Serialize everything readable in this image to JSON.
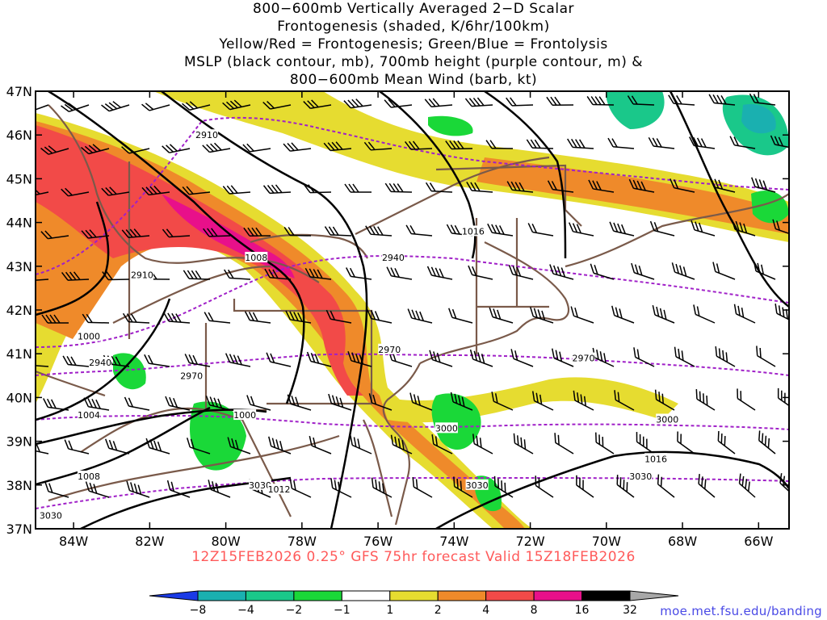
{
  "title": {
    "lines": [
      "800−600mb Vertically Averaged 2−D Scalar",
      "Frontogenesis (shaded, K/6hr/100km)",
      "Yellow/Red = Frontogenesis;  Green/Blue = Frontolysis",
      "MSLP (black contour, mb), 700mb height (purple contour, m) &",
      "800−600mb Mean Wind (barb, kt)"
    ]
  },
  "subtitle": "12Z15FEB2026 0.25° GFS 75hr forecast Valid 15Z18FEB2026",
  "credit": "moe.met.fsu.edu/banding",
  "map": {
    "lon_range": [
      -85,
      -65.2
    ],
    "lat_range": [
      37,
      47
    ],
    "lat_ticks": [
      "37N",
      "38N",
      "39N",
      "40N",
      "41N",
      "42N",
      "43N",
      "44N",
      "45N",
      "46N",
      "47N"
    ],
    "lon_ticks": [
      "84W",
      "82W",
      "80W",
      "78W",
      "76W",
      "74W",
      "72W",
      "70W",
      "68W",
      "66W"
    ],
    "height_contour_labels": [
      {
        "text": "2910",
        "lon": -80.5,
        "lat": 46.0
      },
      {
        "text": "2910",
        "lon": -82.2,
        "lat": 42.8
      },
      {
        "text": "2940",
        "lon": -75.6,
        "lat": 43.2
      },
      {
        "text": "2940",
        "lon": -83.3,
        "lat": 40.8
      },
      {
        "text": "2970",
        "lon": -80.9,
        "lat": 40.5
      },
      {
        "text": "2970",
        "lon": -75.7,
        "lat": 41.1
      },
      {
        "text": "2970",
        "lon": -70.6,
        "lat": 40.9
      },
      {
        "text": "3000",
        "lon": -74.2,
        "lat": 39.3
      },
      {
        "text": "3000",
        "lon": -68.4,
        "lat": 39.5
      },
      {
        "text": "3030",
        "lon": -73.4,
        "lat": 38.0
      },
      {
        "text": "3030",
        "lon": -69.1,
        "lat": 38.2
      },
      {
        "text": "3030",
        "lon": -84.6,
        "lat": 37.3
      },
      {
        "text": "3030",
        "lon": -79.1,
        "lat": 38.0
      }
    ],
    "pressure_contour_labels": [
      {
        "text": "1008",
        "lon": -79.2,
        "lat": 43.2
      },
      {
        "text": "1016",
        "lon": -73.5,
        "lat": 43.8
      },
      {
        "text": "1000",
        "lon": -83.6,
        "lat": 41.4
      },
      {
        "text": "1004",
        "lon": -83.6,
        "lat": 39.6
      },
      {
        "text": "1000",
        "lon": -79.5,
        "lat": 39.6
      },
      {
        "text": "1008",
        "lon": -83.6,
        "lat": 38.2
      },
      {
        "text": "1012",
        "lon": -78.6,
        "lat": 37.9
      },
      {
        "text": "1016",
        "lon": -68.7,
        "lat": 38.6
      }
    ],
    "colors": {
      "frame": "#000000",
      "borders": "#7a5a4a",
      "height_contour": "#a020c8",
      "pressure_contour": "#000000",
      "land_bg": "#ffffff"
    }
  },
  "colorbar": {
    "tick_labels": [
      "−8",
      "−4",
      "−2",
      "−1",
      "1",
      "2",
      "4",
      "8",
      "16",
      "32"
    ],
    "segments": [
      {
        "color": "#1a3ae6"
      },
      {
        "color": "#1ab0b0"
      },
      {
        "color": "#1ac88a"
      },
      {
        "color": "#1ad838"
      },
      {
        "color": "#ffffff"
      },
      {
        "color": "#e6dc30"
      },
      {
        "color": "#ef8a2a"
      },
      {
        "color": "#f24a48"
      },
      {
        "color": "#e8108a"
      },
      {
        "color": "#000000"
      },
      {
        "color": "#a8a8a8"
      }
    ]
  }
}
